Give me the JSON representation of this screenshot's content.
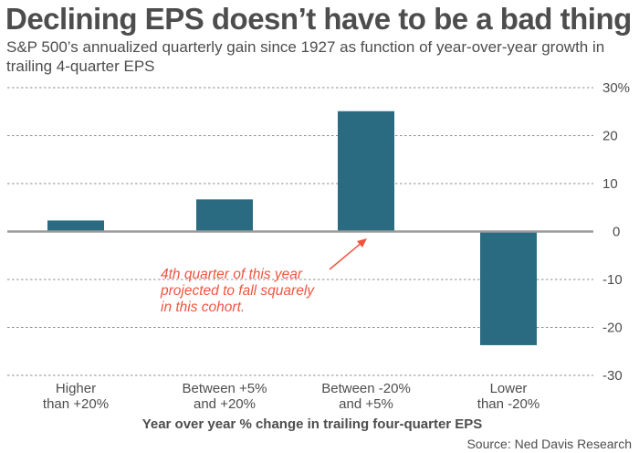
{
  "chart_data": {
    "type": "bar",
    "title": "Declining EPS doesn’t have to be a bad thing",
    "subtitle": "S&P 500’s annualized quarterly gain since 1927 as function of year-over-year growth in trailing 4-quarter EPS",
    "categories": [
      [
        "Higher",
        "than +20%"
      ],
      [
        "Between +5%",
        "and +20%"
      ],
      [
        "Between -20%",
        "and +5%"
      ],
      [
        "Lower",
        "than -20%"
      ]
    ],
    "values": [
      2.3,
      6.7,
      25.1,
      -23.7
    ],
    "xlabel": "Year over year % change in trailing four-quarter EPS",
    "ylabel": "",
    "ylim": [
      -30,
      30
    ],
    "yticks": [
      30,
      20,
      10,
      0,
      -10,
      -20,
      -30
    ],
    "ytick_labels": [
      "30%",
      "20",
      "10",
      "0",
      "-10",
      "-20",
      "-30"
    ],
    "grid": true,
    "y_axis_side": "right",
    "bar_color": "#2a6b82",
    "annotation": {
      "lines": [
        "4th quarter of this year",
        "projected to fall squarely",
        "in this cohort."
      ],
      "target_category_index": 2,
      "color": "#f0543f"
    },
    "source": "Source: Ned Davis Research"
  }
}
